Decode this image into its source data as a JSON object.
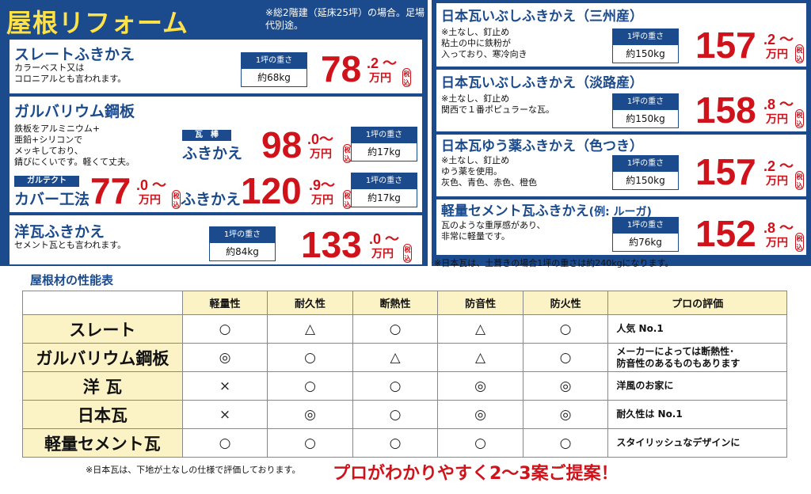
{
  "header": {
    "title": "屋根リフォーム",
    "note": "※総2階建（延床25坪）の場合。足場代別途。"
  },
  "weight_label": "1坪の重さ",
  "man_yen": "万円",
  "tax_incl": "税込",
  "tilde": "～",
  "left": {
    "slate": {
      "title": "スレートふきかえ",
      "desc": [
        "カラーベスト又は",
        "コロニアルとも言われます。"
      ],
      "weight": "約68kg",
      "price_int": "78",
      "price_dec": ".2"
    },
    "galva": {
      "title": "ガルバリウム鋼板",
      "desc": [
        "鉄板をアルミニウム+",
        "亜鉛+シリコンで",
        "メッキしており、",
        "錆びにくいです。軽くて丈夫。"
      ],
      "tag_gawabo": "瓦　棒",
      "fukikae_label": "ふきかえ",
      "price_int": "98",
      "price_dec": ".0",
      "weight": "約17kg",
      "tag_galtect": "ガルテクト",
      "cover_label": "カバー工法",
      "cover_price_int": "77",
      "cover_price_dec": ".0",
      "fukikae2_label": "ふきかえ",
      "price2_int": "120",
      "price2_dec": ".9",
      "weight2": "約17kg"
    },
    "yogawara": {
      "title": "洋瓦ふきかえ",
      "desc": [
        "セメント瓦とも言われます。"
      ],
      "weight": "約84kg",
      "price_int": "133",
      "price_dec": ".0"
    }
  },
  "right": {
    "items": [
      {
        "title": "日本瓦いぶしふきかえ（三州産）",
        "desc": [
          "※土なし、釘止め",
          "粘土の中に鉄粉が",
          "入っており、寒冷向き"
        ],
        "weight": "約150kg",
        "price_int": "157",
        "price_dec": ".2"
      },
      {
        "title": "日本瓦いぶしふきかえ（淡路産）",
        "desc": [
          "※土なし、釘止め",
          "関西で１番ポピュラーな瓦。"
        ],
        "weight": "約150kg",
        "price_int": "158",
        "price_dec": ".8"
      },
      {
        "title": "日本瓦ゆう薬ふきかえ（色つき）",
        "desc": [
          "※土なし、釘止め",
          "ゆう薬を使用。",
          "灰色、青色、赤色、橙色"
        ],
        "weight": "約150kg",
        "price_int": "157",
        "price_dec": ".2"
      },
      {
        "title": "軽量セメント瓦ふきかえ",
        "title_suffix": "(例: ルーガ)",
        "desc": [
          "瓦のような重厚感があり、",
          "非常に軽量です。"
        ],
        "weight": "約76kg",
        "price_int": "152",
        "price_dec": ".8"
      }
    ],
    "note": "※日本瓦は、土葺きの場合1坪の重さは約240kgになります。"
  },
  "performance": {
    "title": "屋根材の性能表",
    "headers": [
      "軽量性",
      "耐久性",
      "断熱性",
      "防音性",
      "防火性",
      "プロの評価"
    ],
    "rows": [
      {
        "name": "スレート",
        "marks": [
          "○",
          "△",
          "○",
          "△",
          "○"
        ],
        "eval": [
          "人気 No.1"
        ]
      },
      {
        "name": "ガルバリウム鋼板",
        "marks": [
          "◎",
          "○",
          "△",
          "△",
          "○"
        ],
        "eval": [
          "メーカーによっては断熱性･",
          "防音性のあるものもあります"
        ]
      },
      {
        "name": "洋 瓦",
        "marks": [
          "×",
          "○",
          "○",
          "◎",
          "◎"
        ],
        "eval": [
          "洋風のお家に"
        ]
      },
      {
        "name": "日本瓦",
        "marks": [
          "×",
          "◎",
          "○",
          "◎",
          "◎"
        ],
        "eval": [
          "耐久性は No.1"
        ]
      },
      {
        "name": "軽量セメント瓦",
        "marks": [
          "○",
          "○",
          "○",
          "○",
          "○"
        ],
        "eval": [
          "スタイリッシュなデザインに"
        ]
      }
    ]
  },
  "footer": {
    "note": "※日本瓦は、下地が土なしの仕様で評価しております。",
    "cta": "プロがわかりやすく2～3案ご提案！"
  }
}
